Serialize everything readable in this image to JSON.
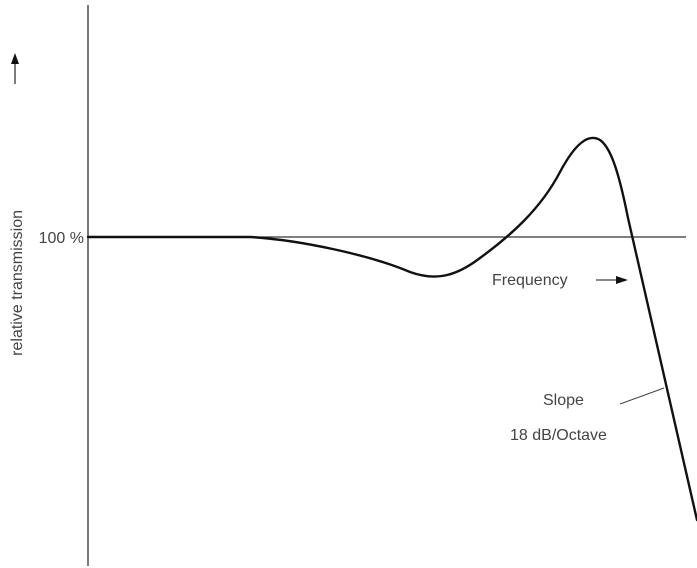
{
  "chart_data": {
    "type": "line",
    "ylabel": "relative transmission",
    "reference_label": "100 %",
    "xlabel": "Frequency",
    "slope_annotation": {
      "line1": "Slope",
      "line2": "18 dB/Octave"
    },
    "grid": false,
    "colors": {
      "curve": "#111111",
      "axis": "#333333",
      "text": "#444444"
    }
  }
}
